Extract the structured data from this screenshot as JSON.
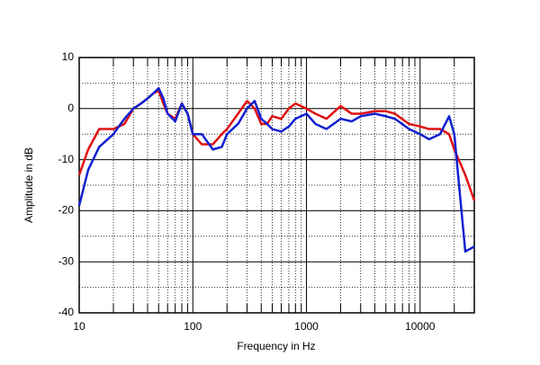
{
  "chart_data": {
    "type": "line",
    "x_label": "Frequency in Hz",
    "y_label": "Amplitude in dB",
    "xscale": "log",
    "grid": true,
    "x": [
      10,
      12,
      15,
      20,
      25,
      30,
      35,
      40,
      45,
      50,
      55,
      60,
      70,
      80,
      90,
      100,
      120,
      150,
      180,
      200,
      250,
      300,
      350,
      400,
      450,
      500,
      600,
      700,
      800,
      1000,
      1200,
      1500,
      2000,
      2500,
      3000,
      4000,
      5000,
      6000,
      8000,
      10000,
      12000,
      15000,
      18000,
      20000,
      25000,
      30000
    ],
    "series": [
      {
        "color": "#e01010",
        "values": [
          -13,
          -8,
          -4,
          -4,
          -3,
          0,
          1,
          2,
          3,
          3.5,
          1,
          -1,
          -2,
          1,
          -1,
          -5,
          -7,
          -7,
          -5,
          -4,
          -1,
          1.5,
          0,
          -3,
          -3,
          -1.5,
          -2,
          0,
          1,
          0,
          -1,
          -2,
          0.5,
          -1,
          -1,
          -0.5,
          -0.5,
          -1,
          -3,
          -3.5,
          -4,
          -4,
          -5,
          -8,
          -13,
          -18
        ]
      },
      {
        "color": "#1020d0",
        "values": [
          -19,
          -12,
          -7.5,
          -5,
          -2,
          0,
          1,
          2,
          3,
          4,
          2,
          -1,
          -2.5,
          1,
          -1,
          -5,
          -5,
          -8,
          -7.5,
          -5,
          -3,
          0,
          1.5,
          -2,
          -3,
          -4,
          -4.5,
          -3.5,
          -2,
          -1,
          -3,
          -4,
          -2,
          -2.5,
          -1.5,
          -1,
          -1.5,
          -2,
          -4,
          -5,
          -6,
          -5,
          -1.5,
          -5,
          -28,
          -27
        ]
      }
    ],
    "xlim": [
      10,
      30000
    ],
    "ylim": [
      -40,
      10
    ],
    "xticks": [
      10,
      100,
      1000,
      10000
    ],
    "yticks": [
      10,
      0,
      -10,
      -20,
      -30,
      -40
    ],
    "xminorticks": [
      20,
      30,
      40,
      50,
      60,
      70,
      80,
      90,
      200,
      300,
      400,
      500,
      600,
      700,
      800,
      900,
      2000,
      3000,
      4000,
      5000,
      6000,
      7000,
      8000,
      9000,
      20000
    ],
    "yminorticks": [
      5,
      -5,
      -15,
      -25,
      -35
    ]
  }
}
